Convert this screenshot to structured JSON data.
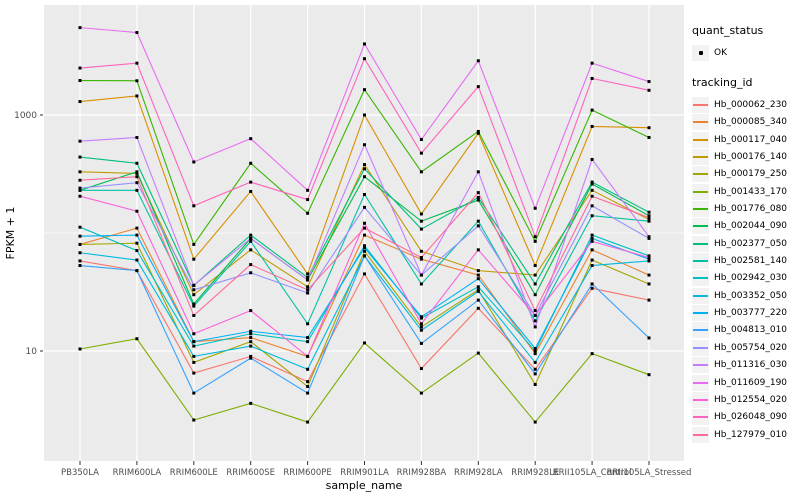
{
  "chart_data": {
    "type": "line",
    "title": "",
    "xlabel": "sample_name",
    "ylabel": "FPKM + 1",
    "y_scale": "log10",
    "ylim": [
      1.2,
      8000
    ],
    "y_ticks": [
      10,
      1000
    ],
    "y_minor_gridlines": [
      100
    ],
    "grid": true,
    "legend_position": "right",
    "panel_bg": "#EBEBEB",
    "grid_color": "#FFFFFF",
    "point_color": "#000000",
    "categories": [
      "PB350LA",
      "RRIM600LA",
      "RRIM600LE",
      "RRIM600SE",
      "RRIM600PE",
      "RRIM901LA",
      "RRIM928BA",
      "RRIM928LA",
      "RRIM928LE",
      "RRII105LA_Control",
      "RRII105LA_Stressed"
    ],
    "series": [
      {
        "name": "Hb_000062_230",
        "color": "#F8766D",
        "values": [
          58,
          48,
          6.5,
          9,
          5.5,
          45,
          7.1,
          23,
          7,
          34,
          27
        ]
      },
      {
        "name": "Hb_000085_340",
        "color": "#EA8331",
        "values": [
          80,
          110,
          12,
          13,
          9,
          96,
          60,
          44,
          9.5,
          72,
          44
        ]
      },
      {
        "name": "Hb_000117_040",
        "color": "#D89000",
        "values": [
          1300,
          1450,
          60,
          225,
          45,
          1000,
          145,
          700,
          53,
          800,
          780
        ]
      },
      {
        "name": "Hb_000176_140",
        "color": "#C09B00",
        "values": [
          330,
          320,
          30,
          72,
          35,
          380,
          70,
          48,
          44,
          230,
          130
        ]
      },
      {
        "name": "Hb_000179_250",
        "color": "#A3A500",
        "values": [
          80,
          82,
          8,
          12,
          5,
          70,
          16,
          33,
          5.2,
          59,
          37
        ]
      },
      {
        "name": "Hb_001433_170",
        "color": "#7CAE00",
        "values": [
          10.4,
          12.7,
          2.6,
          3.6,
          2.5,
          11.7,
          4.4,
          9.6,
          2.5,
          9.5,
          6.3
        ]
      },
      {
        "name": "Hb_001776_080",
        "color": "#39B600",
        "values": [
          1960,
          1950,
          80,
          390,
          147,
          1640,
          330,
          725,
          85,
          1100,
          645
        ]
      },
      {
        "name": "Hb_002044_090",
        "color": "#00BB4E",
        "values": [
          230,
          330,
          25,
          90,
          40,
          300,
          126,
          190,
          30,
          260,
          140
        ]
      },
      {
        "name": "Hb_002377_050",
        "color": "#00BF7D",
        "values": [
          440,
          390,
          36,
          96,
          42,
          350,
          108,
          200,
          37,
          270,
          150
        ]
      },
      {
        "name": "Hb_002581_140",
        "color": "#00C1A3",
        "values": [
          230,
          230,
          24,
          85,
          17,
          212,
          37,
          126,
          18,
          140,
          126
        ]
      },
      {
        "name": "Hb_002942_030",
        "color": "#00BFC4",
        "values": [
          112,
          71,
          11,
          14,
          12,
          78,
          19,
          35,
          10,
          96,
          64
        ]
      },
      {
        "name": "Hb_003352_050",
        "color": "#00BAE0",
        "values": [
          68,
          59,
          9,
          11,
          7,
          64,
          15,
          32,
          8,
          53,
          58
        ]
      },
      {
        "name": "Hb_003777_220",
        "color": "#00B0F6",
        "values": [
          94,
          96,
          12,
          14.7,
          13,
          75,
          19.5,
          41,
          10.5,
          90,
          60
        ]
      },
      {
        "name": "Hb_004813_010",
        "color": "#35A2FF",
        "values": [
          53,
          48,
          4.4,
          8.7,
          4.4,
          64,
          11.6,
          27,
          6.4,
          37,
          12.9
        ]
      },
      {
        "name": "Hb_005754_020",
        "color": "#9590FF",
        "values": [
          240,
          267,
          33,
          46,
          31,
          165,
          44,
          115,
          20,
          170,
          90
        ]
      },
      {
        "name": "Hb_011316_030",
        "color": "#C77CFF",
        "values": [
          600,
          645,
          36,
          90,
          40,
          560,
          44,
          330,
          16,
          420,
          93
        ]
      },
      {
        "name": "Hb_011609_190",
        "color": "#E76BF3",
        "values": [
          5500,
          5000,
          400,
          630,
          230,
          4000,
          620,
          2880,
          162,
          2750,
          1920
        ]
      },
      {
        "name": "Hb_012554_020",
        "color": "#FA62DB",
        "values": [
          205,
          153,
          14,
          22,
          9,
          121,
          17,
          72,
          20,
          85,
          62
        ]
      },
      {
        "name": "Hb_026048_090",
        "color": "#FF62BC",
        "values": [
          2500,
          2750,
          170,
          270,
          192,
          3000,
          475,
          1740,
          93,
          2040,
          1620
        ]
      },
      {
        "name": "Hb_127979_010",
        "color": "#FF6A98",
        "values": [
          280,
          300,
          20,
          54,
          33,
          110,
          62,
          220,
          22,
          205,
          135
        ]
      }
    ],
    "legend": {
      "quant_status": {
        "title": "quant_status",
        "items": [
          {
            "label": "OK",
            "marker": "point"
          }
        ]
      },
      "tracking_id": {
        "title": "tracking_id"
      }
    }
  }
}
